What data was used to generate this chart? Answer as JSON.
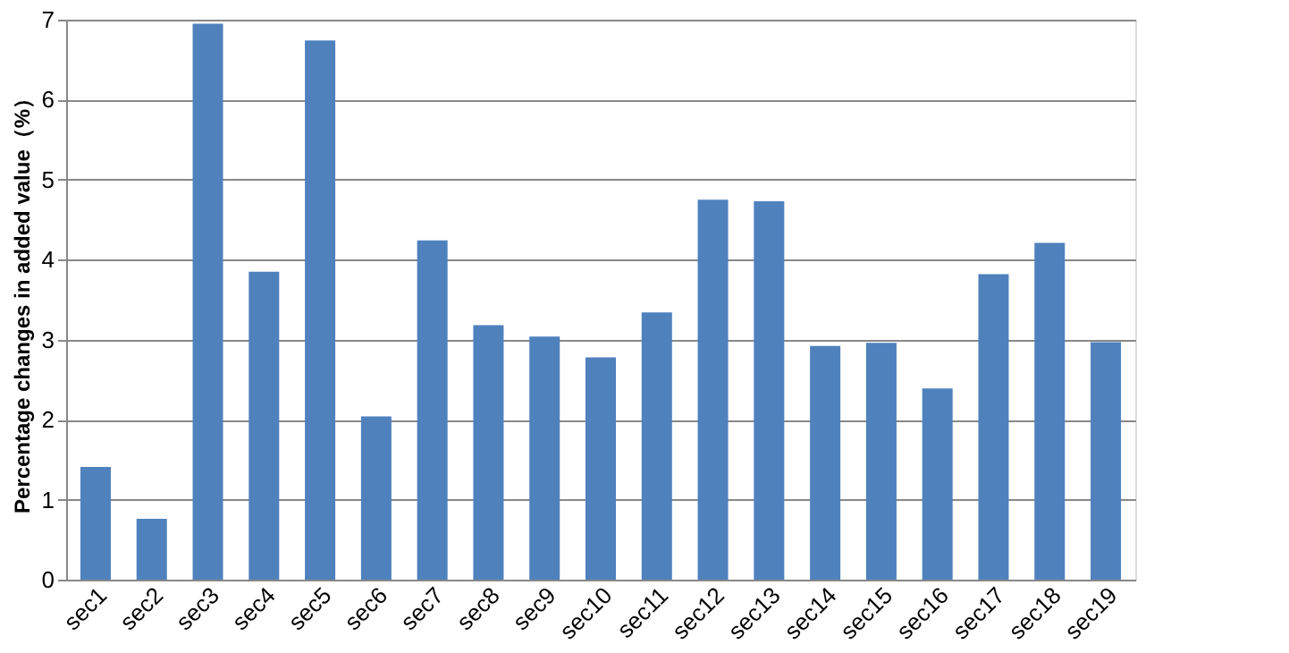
{
  "chart_data": {
    "type": "bar",
    "ylabel": "Percentage changes in added value（%）",
    "categories": [
      "sec1",
      "sec2",
      "sec3",
      "sec4",
      "sec5",
      "sec6",
      "sec7",
      "sec8",
      "sec9",
      "sec10",
      "sec11",
      "sec12",
      "sec13",
      "sec14",
      "sec15",
      "sec16",
      "sec17",
      "sec18",
      "sec19"
    ],
    "values": [
      1.41,
      0.76,
      6.95,
      3.85,
      6.74,
      2.04,
      4.24,
      3.18,
      3.04,
      2.78,
      3.34,
      4.75,
      4.73,
      2.92,
      2.96,
      2.39,
      3.82,
      4.21,
      2.97
    ],
    "color": "#4f81bd",
    "ylim": [
      0,
      7
    ],
    "yticks": [
      0,
      1,
      2,
      3,
      4,
      5,
      6,
      7
    ],
    "grid": "y"
  }
}
